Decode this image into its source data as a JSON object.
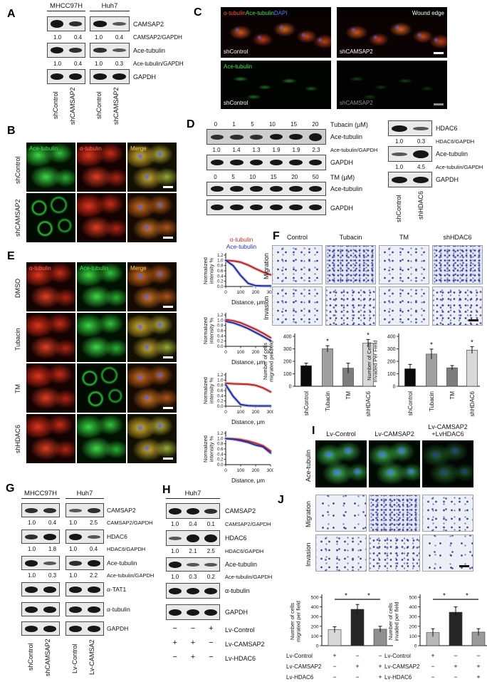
{
  "A": {
    "letter": "A",
    "groups": [
      "MHCC97H",
      "Huh7"
    ],
    "band1": "CAMSAP2",
    "r1": [
      "1.0",
      "0.4",
      "1.0",
      "0.4"
    ],
    "r1l": "CAMSAP2/GAPDH",
    "band2": "Ace-tubulin",
    "r2": [
      "1.0",
      "0.4",
      "1.0",
      "0.3"
    ],
    "r2l": "Ace-tubulin/GAPDH",
    "band3": "GAPDH",
    "lanes": [
      "shControl",
      "shCAMSAP2",
      "shControl",
      "shCAMSAP2"
    ]
  },
  "B": {
    "letter": "B",
    "cols": [
      "Ace-tubulin",
      "α-tubulin",
      "Merge"
    ],
    "rows": [
      "shControl",
      "shCAMSAP2"
    ]
  },
  "C": {
    "letter": "C",
    "m1": "α-tubulin",
    "m2": "Ace-tubulin",
    "m3": "DAPI",
    "wound": "Wound edge",
    "ace": "Ace-tubulin",
    "labels": [
      "shControl",
      "shCAMSAP2",
      "shControl",
      "shCAMSAP2"
    ]
  },
  "D": {
    "letter": "D",
    "doses1": [
      "0",
      "1",
      "5",
      "10",
      "15",
      "20"
    ],
    "unit1": "Tubacin (μM)",
    "b1": "Ace-tubulin",
    "r1": [
      "1.0",
      "1.4",
      "1.3",
      "1.9",
      "1.9",
      "2.3"
    ],
    "r1l": "Ace-tubulin/GAPDH",
    "b2": "GAPDH",
    "doses2": [
      "0",
      "5",
      "10",
      "15",
      "20",
      "50"
    ],
    "unit2": "TM (μM)",
    "b3": "Ace-tubulin",
    "b4": "GAPDH",
    "hb1": "HDAC6",
    "hr1": [
      "1.0",
      "0.3"
    ],
    "hr1l": "HDAC6/GAPDH",
    "hb2": "Ace-tubulin",
    "hr2": [
      "1.0",
      "4.5"
    ],
    "hr2l": "Ace-tubulin/GAPDH",
    "hb3": "GAPDH",
    "hlanes": [
      "shControl",
      "shHDAC6"
    ]
  },
  "E": {
    "letter": "E",
    "cols": [
      "α-tubulin",
      "Ace-tubulin",
      "Merge"
    ],
    "rows": [
      "DMSO",
      "Tubacin",
      "TM",
      "shHDAC6"
    ]
  },
  "F": {
    "letter": "F",
    "cols": [
      "Control",
      "Tubacin",
      "TM",
      "shHDAC6"
    ],
    "rows": [
      "Migration",
      "Invasion"
    ]
  },
  "G": {
    "letter": "G",
    "groups": [
      "MHCC97H",
      "Huh7"
    ],
    "b1": "CAMSAP2",
    "r1": [
      "1.0",
      "0.4",
      "1.0",
      "2.5"
    ],
    "r1l": "CAMSAP2/GAPDH",
    "b2": "HDAC6",
    "r2": [
      "1.0",
      "1.8",
      "1.0",
      "0.4"
    ],
    "r2l": "HDAC6/GAPDH",
    "b3": "Ace-tubulin",
    "r3": [
      "1.0",
      "0.3",
      "1.0",
      "2.2"
    ],
    "r3l": "Ace-tubulin/GAPDH",
    "b4": "α-TAT1",
    "b5": "α-tubulin",
    "b6": "GAPDH",
    "lanes": [
      "shControl",
      "shCAMSAP2",
      "Lv-Control",
      "Lv-CAMSA2"
    ]
  },
  "H": {
    "letter": "H",
    "group": "Huh7",
    "b1": "CAMSAP2",
    "r1": [
      "1.0",
      "0.4",
      "0.1"
    ],
    "r1l": "CAMSAP2/GAPDH",
    "b2": "HDAC6",
    "r2": [
      "1.0",
      "2.1",
      "2.5"
    ],
    "r2l": "HDAC6/GAPDH",
    "b3": "Ace-tubulin",
    "r3": [
      "1.0",
      "0.3",
      "0.2"
    ],
    "r3l": "Ace-tubulin/GAPDH",
    "b4": "α-tubulin",
    "b5": "GAPDH",
    "matrix": [
      {
        "label": "Lv-Control",
        "v": [
          "−",
          "−",
          "+"
        ]
      },
      {
        "label": "Lv-CAMSAP2",
        "v": [
          "+",
          "+",
          "−"
        ]
      },
      {
        "label": "Lv-HDAC6",
        "v": [
          "−",
          "+",
          "−"
        ]
      }
    ]
  },
  "I": {
    "letter": "I",
    "col1": "Lv-Control",
    "col2": "Lv-CAMSAP2",
    "col3_line1": "Lv-CAMSAP2",
    "col3_line2": "+LvHDAC6",
    "row": "Ace-tubulin"
  },
  "J": {
    "letter": "J",
    "rows": [
      "Migration",
      "Invasion"
    ]
  },
  "chart_data": [
    {
      "id": "e1",
      "type": "line",
      "condition": "DMSO",
      "x": [
        0,
        50,
        100,
        150,
        200,
        250,
        300
      ],
      "series": [
        {
          "name": "α-tubulin",
          "color": "#cf2020",
          "values": [
            1.0,
            0.98,
            0.93,
            0.82,
            0.68,
            0.55,
            0.45
          ]
        },
        {
          "name": "Ace-tubulin",
          "color": "#1f2db0",
          "values": [
            1.0,
            0.8,
            0.42,
            0.12,
            0.03,
            0.02,
            0.02
          ]
        }
      ],
      "xlabel": "Distance, μm",
      "ylabel_line1": "Normalized",
      "ylabel_line2": "intensity %",
      "ylim": [
        0,
        1.2
      ],
      "xticks": [
        0,
        100,
        200,
        300
      ],
      "yticks": [
        0.0,
        0.2,
        0.4,
        0.6,
        0.8,
        1.0,
        1.2
      ],
      "legend_position": "top"
    },
    {
      "id": "e2",
      "type": "line",
      "condition": "Tubacin",
      "x": [
        0,
        50,
        100,
        150,
        200,
        250,
        300
      ],
      "series": [
        {
          "name": "α-tubulin",
          "color": "#cf2020",
          "values": [
            1.02,
            0.98,
            0.9,
            0.78,
            0.65,
            0.5,
            0.33
          ]
        },
        {
          "name": "Ace-tubulin",
          "color": "#1f2db0",
          "values": [
            0.96,
            0.9,
            0.8,
            0.68,
            0.53,
            0.38,
            0.22
          ]
        }
      ],
      "xlabel": "Distance, μm",
      "ylabel_line1": "Normalized",
      "ylabel_line2": "intensity %",
      "ylim": [
        0,
        1.2
      ],
      "xticks": [
        0,
        100,
        200,
        300
      ],
      "yticks": [
        0.0,
        0.2,
        0.4,
        0.6,
        0.8,
        1.0,
        1.2
      ]
    },
    {
      "id": "e3",
      "type": "line",
      "condition": "TM",
      "x": [
        0,
        50,
        100,
        150,
        200,
        250,
        300
      ],
      "series": [
        {
          "name": "α-tubulin",
          "color": "#cf2020",
          "values": [
            0.88,
            0.86,
            0.85,
            0.84,
            0.8,
            0.7,
            0.55
          ]
        },
        {
          "name": "Ace-tubulin",
          "color": "#1f2db0",
          "values": [
            0.82,
            0.38,
            0.06,
            0.02,
            0.01,
            0.01,
            0.01
          ]
        }
      ],
      "xlabel": "Distance, μm",
      "ylabel_line1": "Normalized",
      "ylabel_line2": "intensity %",
      "ylim": [
        0,
        1.2
      ],
      "xticks": [
        0,
        100,
        200,
        300
      ],
      "yticks": [
        0.0,
        0.2,
        0.4,
        0.6,
        0.8,
        1.0,
        1.2
      ]
    },
    {
      "id": "e4",
      "type": "line",
      "condition": "shHDAC6",
      "x": [
        0,
        50,
        100,
        150,
        200,
        250,
        300
      ],
      "series": [
        {
          "name": "α-tubulin",
          "color": "#cf2020",
          "values": [
            1.0,
            0.99,
            0.96,
            0.9,
            0.82,
            0.72,
            0.52
          ]
        },
        {
          "name": "Ace-tubulin",
          "color": "#1f2db0",
          "values": [
            1.0,
            0.97,
            0.92,
            0.85,
            0.75,
            0.68,
            0.45
          ]
        }
      ],
      "xlabel": "Distance, μm",
      "ylabel_line1": "Normalized",
      "ylabel_line2": "intensity %",
      "ylim": [
        0,
        1.2
      ],
      "xticks": [
        0,
        100,
        200,
        300
      ],
      "yticks": [
        0.0,
        0.2,
        0.4,
        0.6,
        0.8,
        1.0,
        1.2
      ]
    },
    {
      "id": "f_mig",
      "type": "bar",
      "categories": [
        "shControl",
        "Tubacin",
        "TM",
        "shHDAC6"
      ],
      "values": [
        165,
        300,
        145,
        345
      ],
      "errors": [
        20,
        25,
        40,
        30
      ],
      "sig": [
        "",
        "*",
        "",
        "*"
      ],
      "colors": [
        "#0a0a0a",
        "#a0a0a0",
        "#7d7d7d",
        "#d8d8d8"
      ],
      "ylabel_line1": "Number of cells",
      "ylabel_line2": "migrated per field",
      "ylim": [
        0,
        400
      ],
      "ytick_step": 100
    },
    {
      "id": "f_inv",
      "type": "bar",
      "categories": [
        "shControl",
        "Tubacin",
        "TM",
        "shHDAC6"
      ],
      "values": [
        140,
        258,
        148,
        290
      ],
      "errors": [
        35,
        40,
        18,
        28
      ],
      "sig": [
        "",
        "*",
        "",
        "*"
      ],
      "colors": [
        "#0a0a0a",
        "#a0a0a0",
        "#7d7d7d",
        "#d8d8d8"
      ],
      "ylabel_line1": "Number of Cells",
      "ylabel_line2": "Invaded Per Field",
      "ylim": [
        0,
        400
      ],
      "ytick_step": 100
    },
    {
      "id": "j_mig",
      "type": "bar",
      "values": [
        165,
        375,
        170
      ],
      "errors": [
        30,
        50,
        30
      ],
      "colors": [
        "#d8d8d8",
        "#262626",
        "#8f8f8f"
      ],
      "brackets": [
        {
          "from": 0,
          "to": 1,
          "label": "*"
        },
        {
          "from": 1,
          "to": 2,
          "label": "*"
        }
      ],
      "ylabel_line1": "Number of cells",
      "ylabel_line2": "migrated per field",
      "ylim": [
        0,
        500
      ],
      "ytick_step": 100,
      "matrix": [
        {
          "label": "Lv-Control",
          "v": [
            "+",
            "−",
            "−"
          ]
        },
        {
          "label": "Lv-CAMSAP2",
          "v": [
            "−",
            "+",
            "+"
          ]
        },
        {
          "label": "Lv-HDAC6",
          "v": [
            "−",
            "−",
            "+"
          ]
        }
      ]
    },
    {
      "id": "j_inv",
      "type": "bar",
      "values": [
        135,
        345,
        140
      ],
      "errors": [
        40,
        55,
        35
      ],
      "colors": [
        "#b8b8b8",
        "#262626",
        "#9a9a9a"
      ],
      "brackets": [
        {
          "from": 0,
          "to": 1,
          "label": "*"
        },
        {
          "from": 1,
          "to": 2,
          "label": "*"
        }
      ],
      "ylabel_line1": "Number of cells",
      "ylabel_line2": "invaded per field",
      "ylim": [
        0,
        500
      ],
      "ytick_step": 100,
      "matrix": [
        {
          "label": "Lv-Control",
          "v": [
            "+",
            "−",
            "−"
          ]
        },
        {
          "label": "Lv-CAMSAP2",
          "v": [
            "−",
            "+",
            "+"
          ]
        },
        {
          "label": "Lv-HDAC6",
          "v": [
            "−",
            "−",
            "+"
          ]
        }
      ]
    }
  ]
}
